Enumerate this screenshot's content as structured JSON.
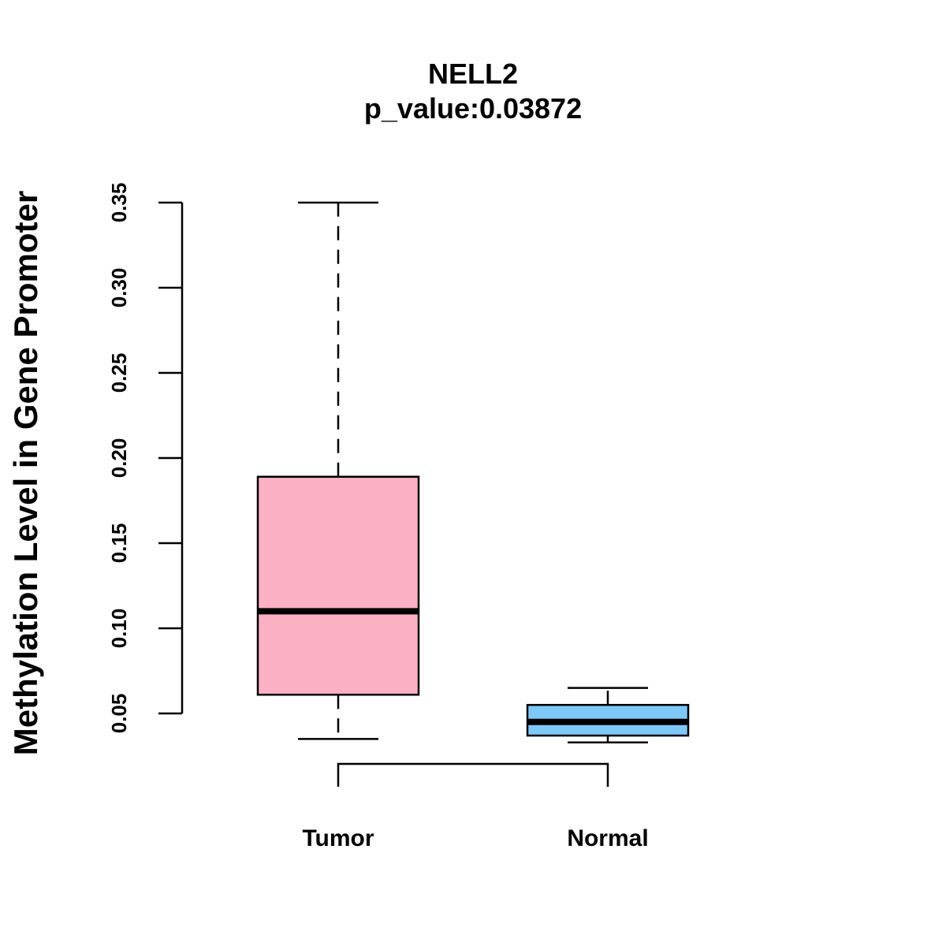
{
  "chart_data": {
    "type": "boxplot",
    "title": "NELL2",
    "subtitle": "p_value:0.03872",
    "ylabel": "Methylation Level in Gene Promoter",
    "xlabel": "",
    "ylim": [
      0.05,
      0.35
    ],
    "yticks": [
      "0.05",
      "0.10",
      "0.15",
      "0.20",
      "0.25",
      "0.30",
      "0.35"
    ],
    "categories": [
      "Tumor",
      "Normal"
    ],
    "boxes": [
      {
        "name": "Tumor",
        "whisker_low": 0.035,
        "q1": 0.061,
        "median": 0.11,
        "q3": 0.189,
        "whisker_high": 0.35,
        "color": "#FBB0C3"
      },
      {
        "name": "Normal",
        "whisker_low": 0.033,
        "q1": 0.037,
        "median": 0.045,
        "q3": 0.055,
        "whisker_high": 0.065,
        "color": "#7EC8F8"
      }
    ],
    "significance_bracket": {
      "from": "Tumor",
      "to": "Normal"
    }
  }
}
